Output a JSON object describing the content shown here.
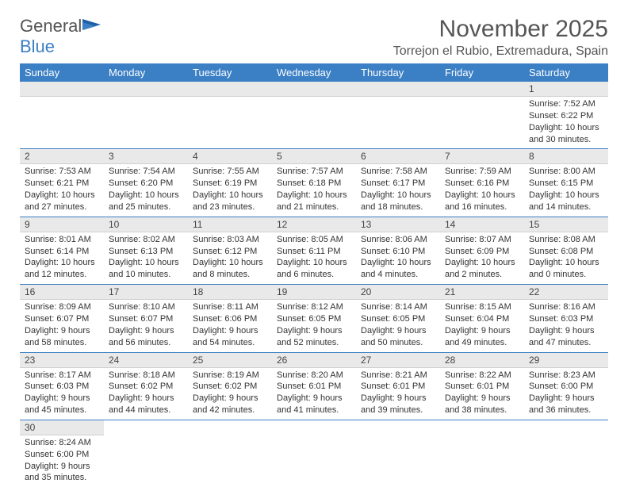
{
  "logo": {
    "text1": "General",
    "text2": "Blue"
  },
  "title": "November 2025",
  "location": "Torrejon el Rubio, Extremadura, Spain",
  "colors": {
    "header_bg": "#3b7fc4",
    "header_fg": "#ffffff",
    "bar_bg": "#e9e9e9",
    "row_border": "#3b7fc4",
    "text": "#333333"
  },
  "day_headers": [
    "Sunday",
    "Monday",
    "Tuesday",
    "Wednesday",
    "Thursday",
    "Friday",
    "Saturday"
  ],
  "weeks": [
    [
      null,
      null,
      null,
      null,
      null,
      null,
      {
        "n": "1",
        "sr": "Sunrise: 7:52 AM",
        "ss": "Sunset: 6:22 PM",
        "dl": "Daylight: 10 hours and 30 minutes."
      }
    ],
    [
      {
        "n": "2",
        "sr": "Sunrise: 7:53 AM",
        "ss": "Sunset: 6:21 PM",
        "dl": "Daylight: 10 hours and 27 minutes."
      },
      {
        "n": "3",
        "sr": "Sunrise: 7:54 AM",
        "ss": "Sunset: 6:20 PM",
        "dl": "Daylight: 10 hours and 25 minutes."
      },
      {
        "n": "4",
        "sr": "Sunrise: 7:55 AM",
        "ss": "Sunset: 6:19 PM",
        "dl": "Daylight: 10 hours and 23 minutes."
      },
      {
        "n": "5",
        "sr": "Sunrise: 7:57 AM",
        "ss": "Sunset: 6:18 PM",
        "dl": "Daylight: 10 hours and 21 minutes."
      },
      {
        "n": "6",
        "sr": "Sunrise: 7:58 AM",
        "ss": "Sunset: 6:17 PM",
        "dl": "Daylight: 10 hours and 18 minutes."
      },
      {
        "n": "7",
        "sr": "Sunrise: 7:59 AM",
        "ss": "Sunset: 6:16 PM",
        "dl": "Daylight: 10 hours and 16 minutes."
      },
      {
        "n": "8",
        "sr": "Sunrise: 8:00 AM",
        "ss": "Sunset: 6:15 PM",
        "dl": "Daylight: 10 hours and 14 minutes."
      }
    ],
    [
      {
        "n": "9",
        "sr": "Sunrise: 8:01 AM",
        "ss": "Sunset: 6:14 PM",
        "dl": "Daylight: 10 hours and 12 minutes."
      },
      {
        "n": "10",
        "sr": "Sunrise: 8:02 AM",
        "ss": "Sunset: 6:13 PM",
        "dl": "Daylight: 10 hours and 10 minutes."
      },
      {
        "n": "11",
        "sr": "Sunrise: 8:03 AM",
        "ss": "Sunset: 6:12 PM",
        "dl": "Daylight: 10 hours and 8 minutes."
      },
      {
        "n": "12",
        "sr": "Sunrise: 8:05 AM",
        "ss": "Sunset: 6:11 PM",
        "dl": "Daylight: 10 hours and 6 minutes."
      },
      {
        "n": "13",
        "sr": "Sunrise: 8:06 AM",
        "ss": "Sunset: 6:10 PM",
        "dl": "Daylight: 10 hours and 4 minutes."
      },
      {
        "n": "14",
        "sr": "Sunrise: 8:07 AM",
        "ss": "Sunset: 6:09 PM",
        "dl": "Daylight: 10 hours and 2 minutes."
      },
      {
        "n": "15",
        "sr": "Sunrise: 8:08 AM",
        "ss": "Sunset: 6:08 PM",
        "dl": "Daylight: 10 hours and 0 minutes."
      }
    ],
    [
      {
        "n": "16",
        "sr": "Sunrise: 8:09 AM",
        "ss": "Sunset: 6:07 PM",
        "dl": "Daylight: 9 hours and 58 minutes."
      },
      {
        "n": "17",
        "sr": "Sunrise: 8:10 AM",
        "ss": "Sunset: 6:07 PM",
        "dl": "Daylight: 9 hours and 56 minutes."
      },
      {
        "n": "18",
        "sr": "Sunrise: 8:11 AM",
        "ss": "Sunset: 6:06 PM",
        "dl": "Daylight: 9 hours and 54 minutes."
      },
      {
        "n": "19",
        "sr": "Sunrise: 8:12 AM",
        "ss": "Sunset: 6:05 PM",
        "dl": "Daylight: 9 hours and 52 minutes."
      },
      {
        "n": "20",
        "sr": "Sunrise: 8:14 AM",
        "ss": "Sunset: 6:05 PM",
        "dl": "Daylight: 9 hours and 50 minutes."
      },
      {
        "n": "21",
        "sr": "Sunrise: 8:15 AM",
        "ss": "Sunset: 6:04 PM",
        "dl": "Daylight: 9 hours and 49 minutes."
      },
      {
        "n": "22",
        "sr": "Sunrise: 8:16 AM",
        "ss": "Sunset: 6:03 PM",
        "dl": "Daylight: 9 hours and 47 minutes."
      }
    ],
    [
      {
        "n": "23",
        "sr": "Sunrise: 8:17 AM",
        "ss": "Sunset: 6:03 PM",
        "dl": "Daylight: 9 hours and 45 minutes."
      },
      {
        "n": "24",
        "sr": "Sunrise: 8:18 AM",
        "ss": "Sunset: 6:02 PM",
        "dl": "Daylight: 9 hours and 44 minutes."
      },
      {
        "n": "25",
        "sr": "Sunrise: 8:19 AM",
        "ss": "Sunset: 6:02 PM",
        "dl": "Daylight: 9 hours and 42 minutes."
      },
      {
        "n": "26",
        "sr": "Sunrise: 8:20 AM",
        "ss": "Sunset: 6:01 PM",
        "dl": "Daylight: 9 hours and 41 minutes."
      },
      {
        "n": "27",
        "sr": "Sunrise: 8:21 AM",
        "ss": "Sunset: 6:01 PM",
        "dl": "Daylight: 9 hours and 39 minutes."
      },
      {
        "n": "28",
        "sr": "Sunrise: 8:22 AM",
        "ss": "Sunset: 6:01 PM",
        "dl": "Daylight: 9 hours and 38 minutes."
      },
      {
        "n": "29",
        "sr": "Sunrise: 8:23 AM",
        "ss": "Sunset: 6:00 PM",
        "dl": "Daylight: 9 hours and 36 minutes."
      }
    ],
    [
      {
        "n": "30",
        "sr": "Sunrise: 8:24 AM",
        "ss": "Sunset: 6:00 PM",
        "dl": "Daylight: 9 hours and 35 minutes."
      },
      null,
      null,
      null,
      null,
      null,
      null
    ]
  ]
}
